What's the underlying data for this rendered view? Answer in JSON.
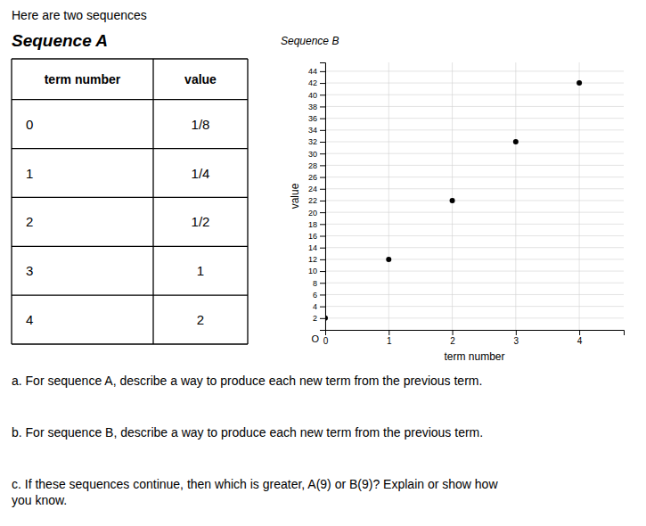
{
  "header": "Here are two sequences",
  "chart_data": [
    {
      "type": "table",
      "title": "Sequence A",
      "columns": [
        "term number",
        "value"
      ],
      "x": [
        0,
        1,
        2,
        3,
        4
      ],
      "values": [
        0.125,
        0.25,
        0.5,
        1,
        2
      ],
      "value_labels": [
        "1/8",
        "1/4",
        "1/2",
        "1",
        "2"
      ]
    },
    {
      "type": "scatter",
      "title": "Sequence B",
      "x_label": "term number",
      "y_label": "value",
      "x": [
        0,
        1,
        2,
        3,
        4
      ],
      "values": [
        2,
        12,
        22,
        32,
        42
      ],
      "color": "#000000",
      "xlim": [
        0,
        4.7
      ],
      "ylim": [
        0,
        45.5
      ],
      "xticks": [
        0,
        1,
        2,
        3,
        4
      ],
      "yticks": [
        2,
        4,
        6,
        8,
        10,
        12,
        14,
        16,
        18,
        20,
        22,
        24,
        26,
        28,
        30,
        32,
        34,
        36,
        38,
        40,
        42,
        44
      ],
      "grid": true,
      "annotations": [
        "O"
      ]
    }
  ],
  "questions": [
    "a. For sequence A, describe a way to produce each new term from the previous term.",
    "b. For sequence B, describe a way to produce each new term from the previous term.",
    "c. If these sequences continue, then which is greater, A(9) or B(9)? Explain or show how\nyou know."
  ]
}
